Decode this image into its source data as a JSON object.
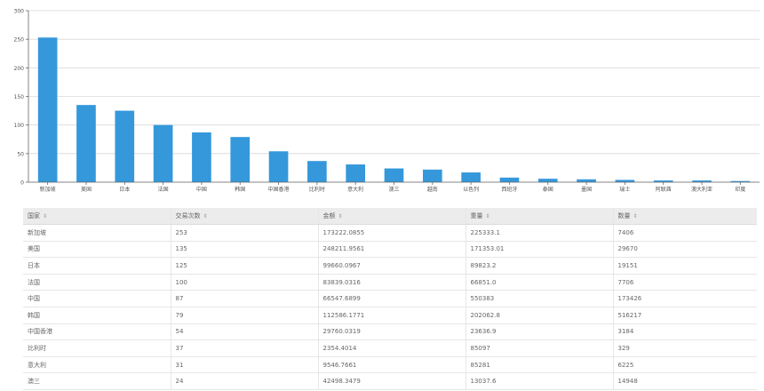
{
  "chart_data": {
    "type": "bar",
    "categories": [
      "新加坡",
      "美国",
      "日本",
      "法国",
      "中国",
      "韩国",
      "中国香港",
      "比利时",
      "意大利",
      "澳三",
      "越南",
      "以色列",
      "西班牙",
      "泰国",
      "墨国",
      "瑞士",
      "阿联酋",
      "澳大利亚",
      "印度"
    ],
    "values": [
      253,
      135,
      125,
      100,
      87,
      79,
      54,
      37,
      31,
      24,
      22,
      17,
      8,
      6,
      5,
      4,
      3,
      3,
      2
    ],
    "ylim": [
      0,
      300
    ],
    "yticks": [
      0,
      50,
      100,
      150,
      200,
      250,
      300
    ],
    "title": "",
    "xlabel": "",
    "ylabel": "",
    "grid": true,
    "bar_color": "#3498db"
  },
  "table": {
    "headers": [
      "国家",
      "交易次数",
      "金额",
      "重量",
      "数量"
    ],
    "sort_icon": "⇕",
    "rows": [
      [
        "新加坡",
        "253",
        "173222.0855",
        "225333.1",
        "7406"
      ],
      [
        "美国",
        "135",
        "248211.9561",
        "171353.01",
        "29670"
      ],
      [
        "日本",
        "125",
        "99660.0967",
        "89823.2",
        "19151"
      ],
      [
        "法国",
        "100",
        "83839.0316",
        "66851.0",
        "7706"
      ],
      [
        "中国",
        "87",
        "66547.6899",
        "550383",
        "173426"
      ],
      [
        "韩国",
        "79",
        "112586.1771",
        "202062.8",
        "516217"
      ],
      [
        "中国香港",
        "54",
        "29760.0319",
        "23636.9",
        "3184"
      ],
      [
        "比利时",
        "37",
        "2354.4014",
        "85097",
        "329"
      ],
      [
        "意大利",
        "31",
        "9546.7661",
        "85281",
        "6225"
      ],
      [
        "澳三",
        "24",
        "42498.3479",
        "13037.6",
        "14948"
      ]
    ]
  }
}
